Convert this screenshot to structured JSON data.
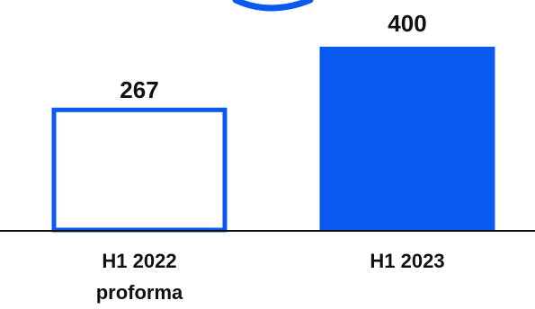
{
  "chart_data": {
    "type": "bar",
    "title": "",
    "xlabel": "",
    "ylabel": "",
    "categories": [
      {
        "line1": "H1 2022",
        "line2": "proforma"
      },
      {
        "line1": "H1 2023",
        "line2": ""
      }
    ],
    "values": [
      267,
      400
    ],
    "value_labels": [
      "267",
      "400"
    ],
    "bar_styles": [
      "outline",
      "filled"
    ],
    "ylim": [
      0,
      400
    ],
    "grid": false,
    "legend": "none"
  },
  "colors": {
    "accent": "#0a59f0",
    "text": "#111111",
    "baseline": "#111111",
    "background": "#ffffff"
  },
  "decoration": {
    "arc_icon": "partial-circle-arc"
  }
}
